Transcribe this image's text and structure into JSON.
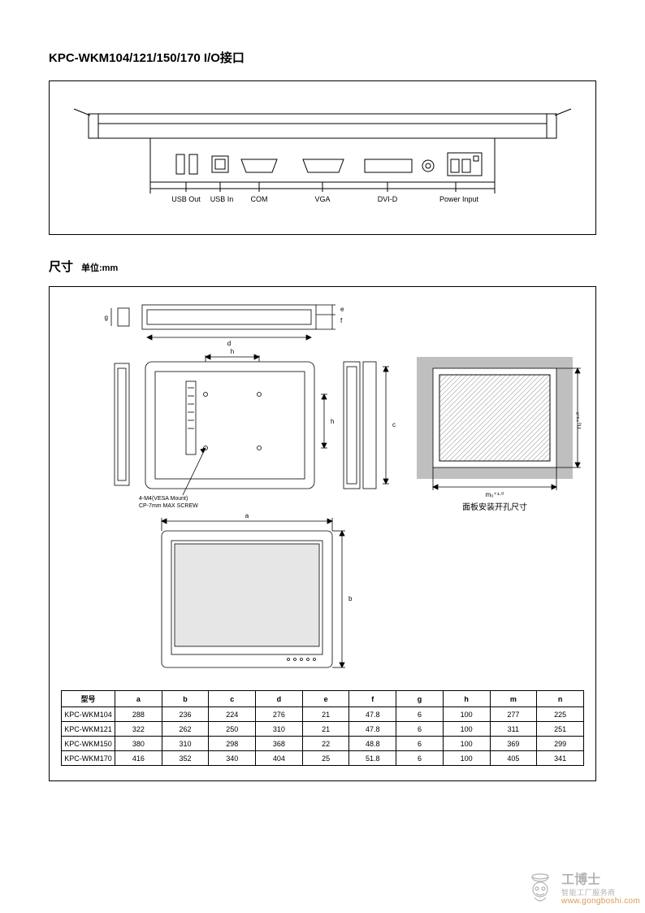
{
  "title": "KPC-WKM104/121/150/170 I/O接口",
  "io": {
    "ports": [
      "USB Out",
      "USB In",
      "COM",
      "VGA",
      "DVI-D",
      "Power Input"
    ]
  },
  "dimensions": {
    "heading": "尺寸",
    "unit": "单位:mm",
    "vesa_note1": "4-M4(VESA Mount)",
    "vesa_note2": "CP-7mm MAX SCREW",
    "cutout_caption": "面板安装开孔尺寸",
    "dim_labels": {
      "a": "a",
      "b": "b",
      "c": "c",
      "d": "d",
      "e": "e",
      "f": "f",
      "g": "g",
      "h": "h",
      "m": "m",
      "n": "n"
    },
    "m_label": "m₀⁺¹·⁰",
    "n_label": "n₀⁺¹·⁰"
  },
  "table": {
    "header": [
      "型号",
      "a",
      "b",
      "c",
      "d",
      "e",
      "f",
      "g",
      "h",
      "m",
      "n"
    ],
    "rows": [
      [
        "KPC-WKM104",
        "288",
        "236",
        "224",
        "276",
        "21",
        "47.8",
        "6",
        "100",
        "277",
        "225"
      ],
      [
        "KPC-WKM121",
        "322",
        "262",
        "250",
        "310",
        "21",
        "47.8",
        "6",
        "100",
        "311",
        "251"
      ],
      [
        "KPC-WKM150",
        "380",
        "310",
        "298",
        "368",
        "22",
        "48.8",
        "6",
        "100",
        "369",
        "299"
      ],
      [
        "KPC-WKM170",
        "416",
        "352",
        "340",
        "404",
        "25",
        "51.8",
        "6",
        "100",
        "405",
        "341"
      ]
    ]
  },
  "watermark": {
    "brand": "工博士",
    "sub": "智能工厂服务商",
    "url": "www.gongboshi.com"
  },
  "colors": {
    "stroke": "#000000",
    "shade": "#bfbfbf",
    "light": "#e6e6e6",
    "wm_gray": "#b4b4b4",
    "wm_orange": "#d99a59"
  }
}
